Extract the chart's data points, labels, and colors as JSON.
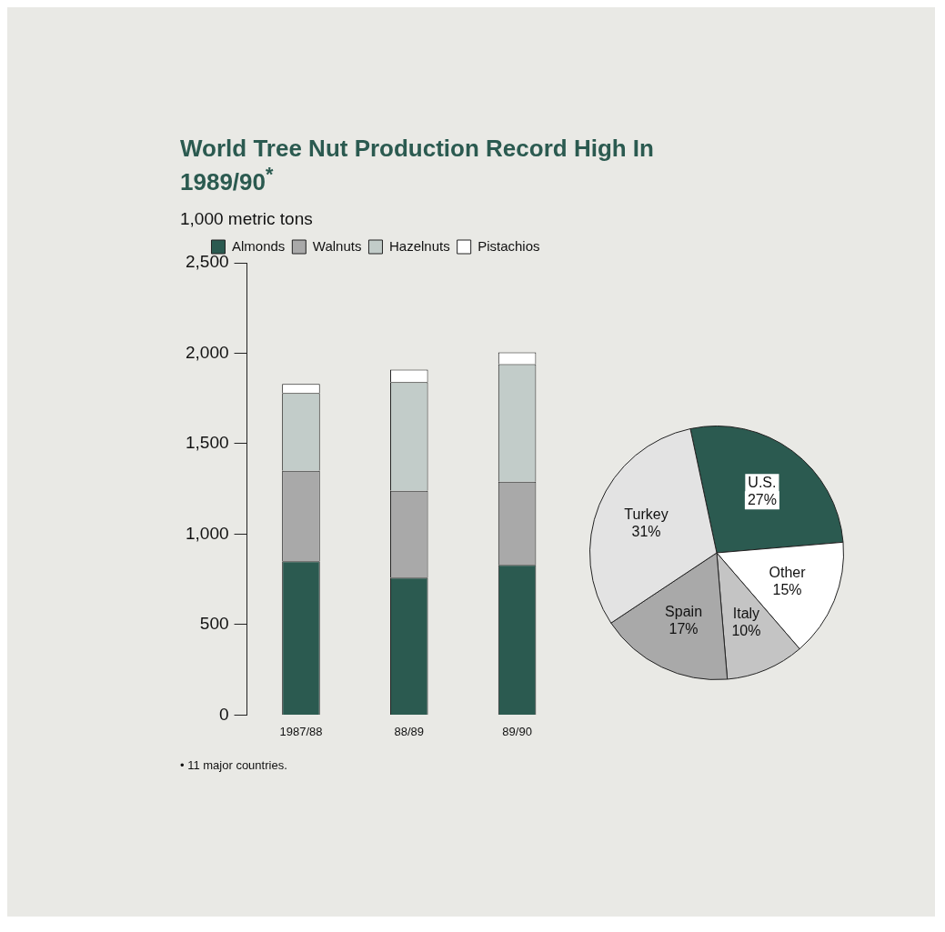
{
  "chart_data": [
    {
      "type": "bar",
      "title": "World Tree Nut Production Record High In 1989/90$^{*}$",
      "ylabel": "1,000 metric tons",
      "categories": [
        "1987/88",
        "88/89",
        "89/90"
      ],
      "stacked": true,
      "series": [
        {
          "name": "Almonds",
          "color": "#2b5a50",
          "values": [
            850,
            760,
            830
          ]
        },
        {
          "name": "Walnuts",
          "color": "#a9a9a9",
          "values": [
            500,
            480,
            460
          ]
        },
        {
          "name": "Hazelnuts",
          "color": "#c2ccc9",
          "values": [
            430,
            600,
            650
          ]
        },
        {
          "name": "Pistachios",
          "color": "#ffffff",
          "values": [
            50,
            70,
            65
          ]
        }
      ],
      "ylim": [
        0,
        2500
      ],
      "yticks": [
        0,
        500,
        {
          "value": 1000,
          "label": "1,000"
        },
        {
          "value": 1500,
          "label": "1,500"
        },
        {
          "value": 2000,
          "label": "2,000"
        },
        {
          "value": 2500,
          "label": "2,500"
        }
      ],
      "grid": false,
      "legend": "top",
      "annotations": [
        "• 11 major countries."
      ]
    },
    {
      "type": "pie",
      "categories": [
        "U.S.",
        "Other",
        "Italy",
        "Spain",
        "Turkey"
      ],
      "values": [
        27,
        15,
        10,
        17,
        31
      ],
      "colors": [
        "#2b5a50",
        "#ffffff",
        "#c4c4c4",
        "#a9a9a9",
        "#e3e3e3"
      ],
      "value_labels": [
        "27%",
        "15%",
        "10%",
        "17%",
        "31%"
      ]
    }
  ]
}
